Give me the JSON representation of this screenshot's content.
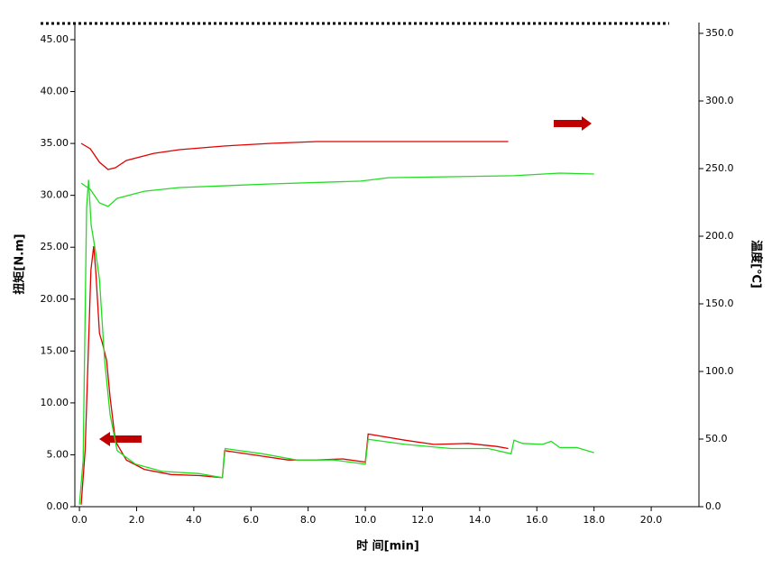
{
  "chart_data": {
    "type": "line",
    "x_label": "时 间[min]",
    "y_label": "扭矩[N.m]",
    "y2_label": "温度[℃]",
    "xlim": [
      -0.16,
      21.67
    ],
    "ylim": [
      0,
      46.65
    ],
    "y2lim": [
      0,
      358
    ],
    "xticks": [
      {
        "value": 0,
        "label": "0.0"
      },
      {
        "value": 2,
        "label": "2.0"
      },
      {
        "value": 4,
        "label": "4.0"
      },
      {
        "value": 6,
        "label": "6.0"
      },
      {
        "value": 8,
        "label": "8.0"
      },
      {
        "value": 10,
        "label": "10.0"
      },
      {
        "value": 12,
        "label": "12.0"
      },
      {
        "value": 14,
        "label": "14.0"
      },
      {
        "value": 16,
        "label": "16.0"
      },
      {
        "value": 18,
        "label": "18.0"
      },
      {
        "value": 20,
        "label": "20.0"
      }
    ],
    "yticks": [
      {
        "value": 0,
        "label": "0.00"
      },
      {
        "value": 5,
        "label": "5.00"
      },
      {
        "value": 10,
        "label": "10.00"
      },
      {
        "value": 15,
        "label": "15.00"
      },
      {
        "value": 20,
        "label": "20.00"
      },
      {
        "value": 25,
        "label": "25.00"
      },
      {
        "value": 30,
        "label": "30.00"
      },
      {
        "value": 35,
        "label": "35.00"
      },
      {
        "value": 40,
        "label": "40.00"
      },
      {
        "value": 45,
        "label": "45.00"
      }
    ],
    "y2ticks": [
      {
        "value": 0,
        "label": "0.0"
      },
      {
        "value": 50,
        "label": "50.0"
      },
      {
        "value": 100,
        "label": "100.0"
      },
      {
        "value": 150,
        "label": "150.0"
      },
      {
        "value": 200,
        "label": "200.0"
      },
      {
        "value": 250,
        "label": "250.0"
      },
      {
        "value": 300,
        "label": "300.0"
      },
      {
        "value": 350,
        "label": "350.0"
      }
    ],
    "series": [
      {
        "color": "#e00000",
        "axis": "y",
        "x": [
          0.06,
          0.2,
          0.4,
          0.5,
          0.57,
          0.7,
          0.8,
          0.95,
          1.07,
          1.26,
          1.64,
          2.27,
          3.2,
          4.2,
          5.0,
          5.08,
          6.06,
          7.3,
          8.27,
          9.2,
          10.0,
          10.1,
          11.4,
          12.4,
          13.6,
          14.6,
          15.0
        ],
        "values": [
          0.2,
          5.4,
          22.8,
          25.1,
          22.8,
          16.7,
          15.8,
          14.1,
          10.6,
          6.3,
          4.5,
          3.6,
          3.1,
          3.0,
          2.8,
          5.4,
          5.0,
          4.5,
          4.5,
          4.6,
          4.3,
          7.0,
          6.4,
          6.0,
          6.1,
          5.8,
          5.6
        ]
      },
      {
        "color": "#22dd22",
        "axis": "y",
        "x": [
          0,
          0.13,
          0.25,
          0.32,
          0.41,
          0.57,
          0.7,
          0.88,
          1.07,
          1.32,
          1.96,
          2.9,
          4.16,
          5.0,
          5.1,
          6.4,
          7.6,
          8.9,
          10.0,
          10.1,
          11.4,
          13.0,
          14.3,
          15.1,
          15.2,
          15.5,
          16.2,
          16.5,
          16.8,
          17.4,
          18.0
        ],
        "values": [
          0.2,
          4.5,
          28.8,
          31.5,
          27.1,
          24.5,
          21.9,
          14.1,
          8.9,
          5.4,
          4.1,
          3.4,
          3.2,
          2.8,
          5.6,
          5.1,
          4.5,
          4.5,
          4.1,
          6.5,
          6.0,
          5.6,
          5.6,
          5.1,
          6.4,
          6.1,
          6.0,
          6.3,
          5.7,
          5.7,
          5.2
        ]
      },
      {
        "color": "#e00000",
        "axis": "y2",
        "x": [
          0.06,
          0.38,
          0.7,
          1.0,
          1.26,
          1.64,
          2.6,
          3.5,
          5.1,
          6.7,
          8.3,
          11.4,
          15.0
        ],
        "values": [
          268.7,
          264.7,
          254.7,
          249.3,
          250.7,
          256,
          261.3,
          264,
          266.7,
          268.7,
          270,
          270,
          270
        ]
      },
      {
        "color": "#22dd22",
        "axis": "y2",
        "x": [
          0.06,
          0.38,
          0.7,
          1.0,
          1.32,
          2.27,
          3.5,
          6.7,
          9.84,
          10.8,
          13.0,
          15.2,
          16.8,
          18.0
        ],
        "values": [
          239.3,
          234.7,
          224.7,
          222,
          228,
          233.3,
          236,
          238.7,
          240.7,
          243.3,
          244,
          244.7,
          246.7,
          246
        ]
      }
    ]
  }
}
